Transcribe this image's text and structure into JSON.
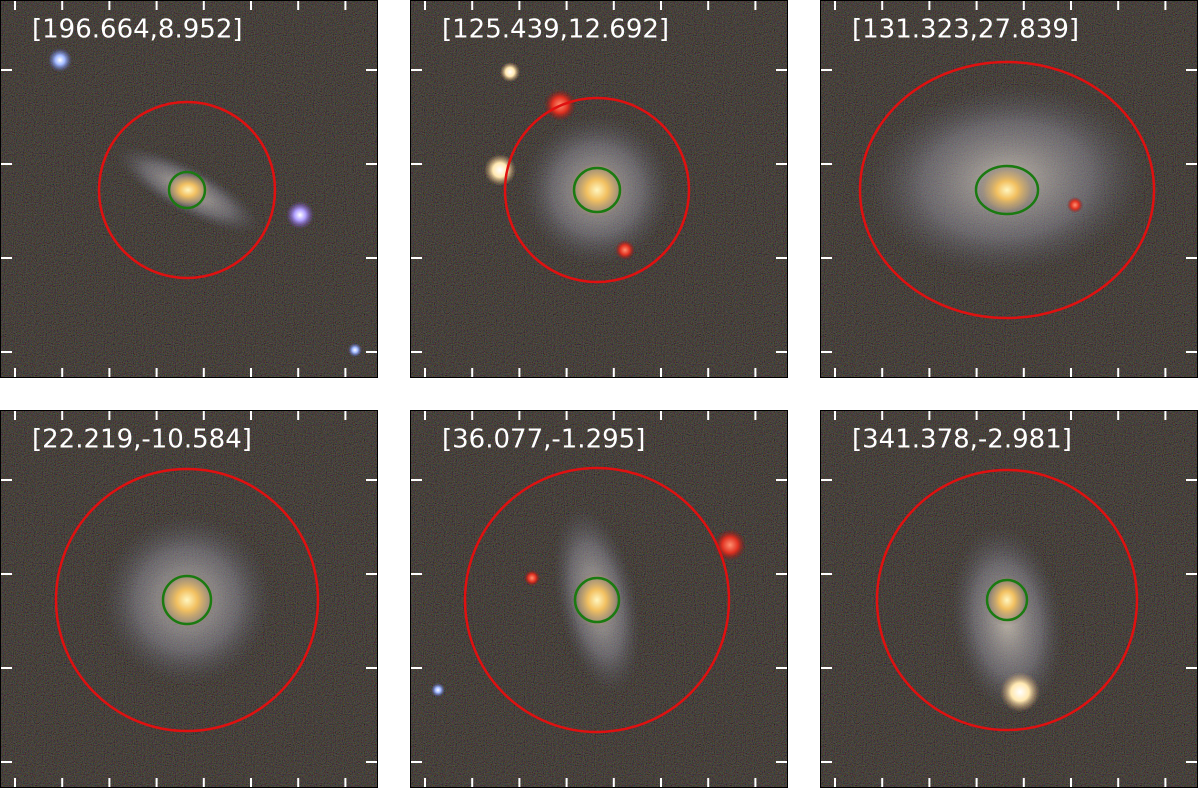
{
  "panels": [
    {
      "label": "[196.664,8.952]"
    },
    {
      "label": "[125.439,12.692]"
    },
    {
      "label": "[131.323,27.839]"
    },
    {
      "label": "[22.219,-10.584]"
    },
    {
      "label": "[36.077,-1.295]"
    },
    {
      "label": "[341.378,-2.981]"
    }
  ]
}
